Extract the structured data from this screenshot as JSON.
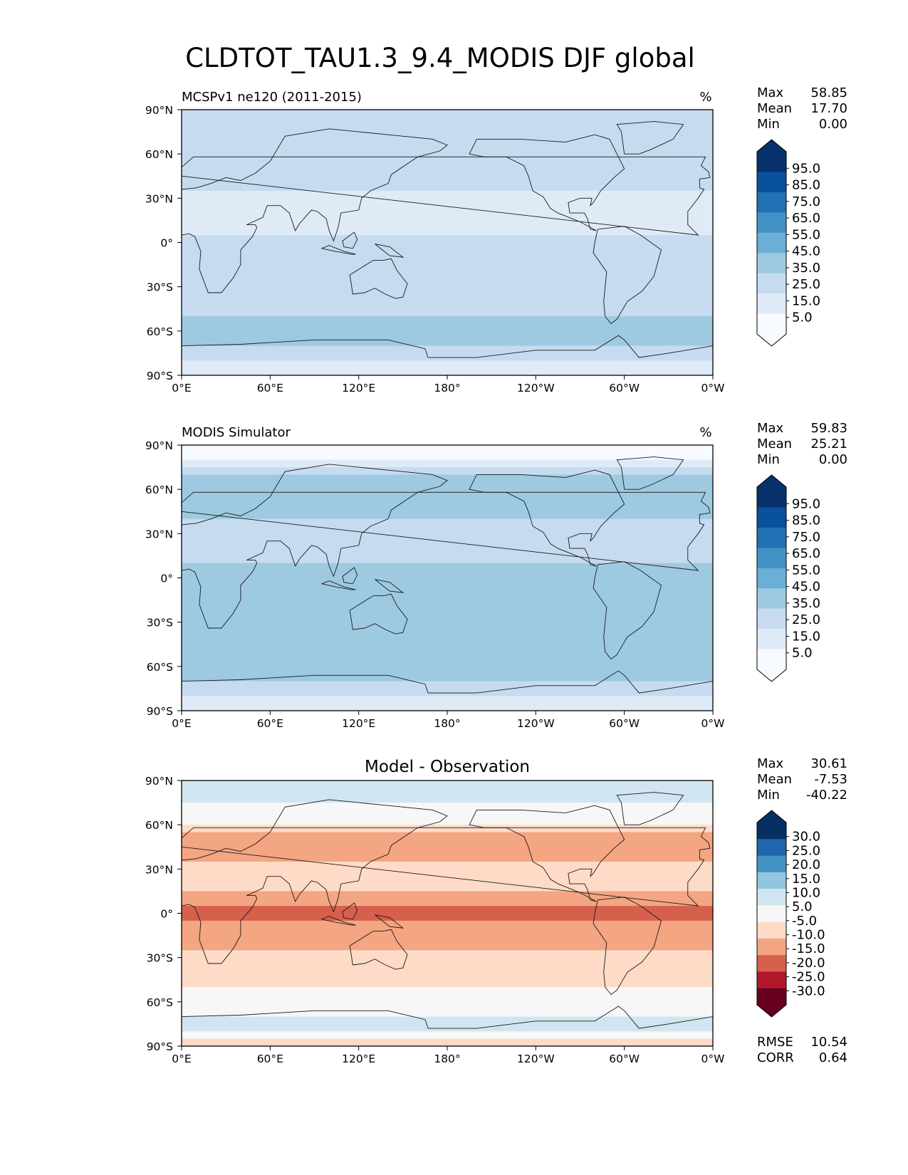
{
  "title": "CLDTOT_TAU1.3_9.4_MODIS DJF global",
  "x_ticks": [
    "0°E",
    "60°E",
    "120°E",
    "180°",
    "120°W",
    "60°W",
    "0°W"
  ],
  "y_ticks": [
    "90°N",
    "60°N",
    "30°N",
    "0°",
    "30°S",
    "60°S",
    "90°S"
  ],
  "colors": {
    "blues": [
      "#f7fbff",
      "#deebf7",
      "#c6dbef",
      "#9ecae1",
      "#6baed6",
      "#4292c6",
      "#2171b5",
      "#08519c",
      "#08306b"
    ],
    "diverging": [
      "#67001f",
      "#b2182b",
      "#d6604d",
      "#f4a582",
      "#fddbc7",
      "#f7f7f7",
      "#d1e5f0",
      "#92c5de",
      "#4393c3",
      "#2166ac",
      "#053061"
    ]
  },
  "panels": [
    {
      "id": "model",
      "subtitle_left": "MCSPv1 ne120 (2011-2015)",
      "subtitle_center": "",
      "units": "%",
      "stats": {
        "max_label": "Max",
        "max": "58.85",
        "mean_label": "Mean",
        "mean": "17.70",
        "min_label": "Min",
        "min": "0.00"
      },
      "colorbar_labels": [
        "95.0",
        "85.0",
        "75.0",
        "65.0",
        "55.0",
        "45.0",
        "35.0",
        "25.0",
        "15.0",
        "5.0"
      ]
    },
    {
      "id": "obs",
      "subtitle_left": "MODIS Simulator",
      "subtitle_center": "",
      "units": "%",
      "stats": {
        "max_label": "Max",
        "max": "59.83",
        "mean_label": "Mean",
        "mean": "25.21",
        "min_label": "Min",
        "min": "0.00"
      },
      "colorbar_labels": [
        "95.0",
        "85.0",
        "75.0",
        "65.0",
        "55.0",
        "45.0",
        "35.0",
        "25.0",
        "15.0",
        "5.0"
      ]
    },
    {
      "id": "diff",
      "subtitle_left": "",
      "subtitle_center": "Model - Observation",
      "units": "",
      "stats": {
        "max_label": "Max",
        "max": "30.61",
        "mean_label": "Mean",
        "mean": "-7.53",
        "min_label": "Min",
        "min": "-40.22"
      },
      "colorbar_labels": [
        "30.0",
        "25.0",
        "20.0",
        "15.0",
        "10.0",
        "5.0",
        "-5.0",
        "-10.0",
        "-15.0",
        "-20.0",
        "-25.0",
        "-30.0"
      ],
      "metrics": {
        "rmse_label": "RMSE",
        "rmse": "10.54",
        "corr_label": "CORR",
        "corr": "0.64"
      }
    }
  ],
  "chart_data": [
    {
      "type": "heatmap",
      "title": "MCSPv1 ne120 (2011-2015)",
      "units": "%",
      "xlim": [
        0,
        360
      ],
      "ylim": [
        -90,
        90
      ],
      "contour_levels": [
        0,
        5,
        15,
        25,
        35,
        45,
        55,
        65,
        75,
        85,
        95,
        100
      ],
      "zonal_mean_profile": {
        "lat": [
          80,
          70,
          60,
          45,
          30,
          15,
          0,
          -15,
          -30,
          -45,
          -55,
          -65,
          -75,
          -85
        ],
        "value": [
          20,
          22,
          24,
          19,
          14,
          12,
          16,
          15,
          17,
          22,
          28,
          27,
          20,
          8
        ]
      },
      "max": 58.85,
      "mean": 17.7,
      "min": 0.0
    },
    {
      "type": "heatmap",
      "title": "MODIS Simulator",
      "units": "%",
      "xlim": [
        0,
        360
      ],
      "ylim": [
        -90,
        90
      ],
      "contour_levels": [
        0,
        5,
        15,
        25,
        35,
        45,
        55,
        65,
        75,
        85,
        95,
        100
      ],
      "zonal_mean_profile": {
        "lat": [
          80,
          70,
          60,
          45,
          30,
          15,
          0,
          -15,
          -30,
          -45,
          -55,
          -65,
          -75,
          -85
        ],
        "value": [
          0,
          25,
          28,
          27,
          22,
          20,
          30,
          27,
          28,
          30,
          32,
          28,
          20,
          12
        ]
      },
      "max": 59.83,
      "mean": 25.21,
      "min": 0.0
    },
    {
      "type": "heatmap",
      "title": "Model - Observation",
      "xlim": [
        0,
        360
      ],
      "ylim": [
        -90,
        90
      ],
      "contour_levels": [
        -30,
        -25,
        -20,
        -15,
        -10,
        -5,
        5,
        10,
        15,
        20,
        25,
        30
      ],
      "zonal_mean_profile": {
        "lat": [
          75,
          65,
          50,
          35,
          20,
          5,
          0,
          -10,
          -25,
          -40,
          -55,
          -65,
          -75,
          -88
        ],
        "value": [
          6,
          -2,
          -12,
          -10,
          -8,
          -16,
          -18,
          -12,
          -10,
          -8,
          -4,
          0,
          10,
          -10
        ]
      },
      "max": 30.61,
      "mean": -7.53,
      "min": -40.22,
      "rmse": 10.54,
      "corr": 0.64
    }
  ]
}
